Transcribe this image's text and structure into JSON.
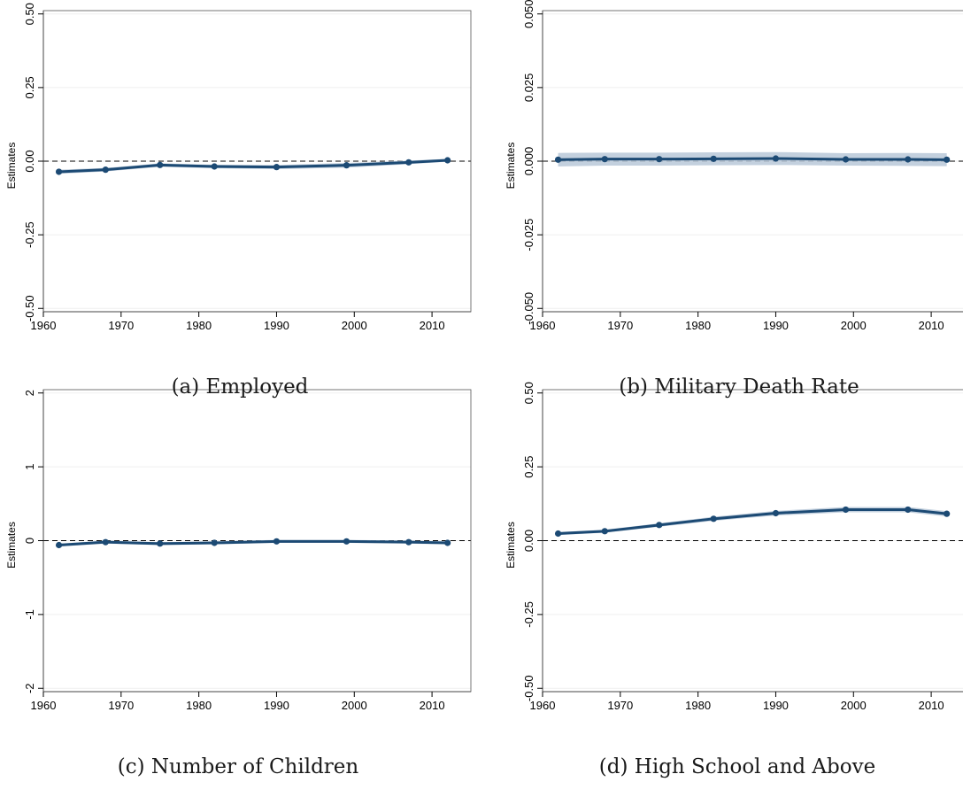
{
  "chart_data": [
    {
      "type": "line",
      "caption": "(a) Employed",
      "ylabel": "Estimates",
      "xlabel": "",
      "xlim": [
        1960,
        2015
      ],
      "ylim": [
        -0.5,
        0.5
      ],
      "xticks": [
        1960,
        1970,
        1980,
        1990,
        2000,
        2010
      ],
      "xtick_labels": [
        "1960",
        "1970",
        "1980",
        "1990",
        "2000",
        "2010"
      ],
      "yticks": [
        -0.5,
        -0.25,
        0,
        0.25,
        0.5
      ],
      "ytick_labels": [
        "-0.50",
        "-0.25",
        "0.00",
        "0.25",
        "0.50"
      ],
      "reference_line": 0,
      "grid": true,
      "series": [
        {
          "x": [
            1962,
            1968,
            1975,
            1982,
            1990,
            1999,
            2007,
            2012
          ],
          "y": [
            -0.036,
            -0.029,
            -0.013,
            -0.018,
            -0.02,
            -0.014,
            -0.004,
            0.003
          ],
          "ci_lower": [
            -0.043,
            -0.035,
            -0.019,
            -0.024,
            -0.027,
            -0.022,
            -0.01,
            -0.002
          ],
          "ci_upper": [
            -0.029,
            -0.023,
            -0.007,
            -0.012,
            -0.013,
            -0.006,
            0.002,
            0.008
          ]
        }
      ]
    },
    {
      "type": "line",
      "caption": "(b) Military Death Rate",
      "ylabel": "Estimates",
      "xlabel": "",
      "xlim": [
        1960,
        2015
      ],
      "ylim": [
        -0.05,
        0.05
      ],
      "xticks": [
        1960,
        1970,
        1980,
        1990,
        2000,
        2010
      ],
      "xtick_labels": [
        "1960",
        "1970",
        "1980",
        "1990",
        "2000",
        "2010"
      ],
      "yticks": [
        -0.05,
        -0.025,
        0,
        0.025,
        0.05
      ],
      "ytick_labels": [
        "-0.050",
        "-0.025",
        "0.000",
        "0.025",
        "0.050"
      ],
      "reference_line": 0,
      "grid": true,
      "series": [
        {
          "x": [
            1962,
            1968,
            1975,
            1982,
            1990,
            1999,
            2007,
            2012
          ],
          "y": [
            0.0005,
            0.0007,
            0.0007,
            0.0008,
            0.0009,
            0.0006,
            0.0006,
            0.0005
          ],
          "ci_lower": [
            -0.0018,
            -0.0015,
            -0.0015,
            -0.0014,
            -0.0013,
            -0.0015,
            -0.0016,
            -0.0017
          ],
          "ci_upper": [
            0.0028,
            0.0029,
            0.0029,
            0.003,
            0.0031,
            0.0027,
            0.0028,
            0.0027
          ]
        }
      ]
    },
    {
      "type": "line",
      "caption": "(c) Number of Children",
      "ylabel": "Estimates",
      "xlabel": "",
      "xlim": [
        1960,
        2015
      ],
      "ylim": [
        -2,
        2
      ],
      "xticks": [
        1960,
        1970,
        1980,
        1990,
        2000,
        2010
      ],
      "xtick_labels": [
        "1960",
        "1970",
        "1980",
        "1990",
        "2000",
        "2010"
      ],
      "yticks": [
        -2,
        -1,
        0,
        1,
        2
      ],
      "ytick_labels": [
        "-2",
        "-1",
        "0",
        "1",
        "2"
      ],
      "reference_line": 0,
      "grid": true,
      "series": [
        {
          "x": [
            1962,
            1968,
            1975,
            1982,
            1990,
            1999,
            2007,
            2012
          ],
          "y": [
            -0.06,
            -0.02,
            -0.04,
            -0.03,
            -0.01,
            -0.01,
            -0.02,
            -0.03
          ],
          "ci_lower": [
            -0.08,
            -0.04,
            -0.06,
            -0.05,
            -0.03,
            -0.03,
            -0.04,
            -0.05
          ],
          "ci_upper": [
            -0.04,
            0.0,
            -0.02,
            -0.01,
            0.01,
            0.01,
            0.0,
            -0.01
          ]
        }
      ]
    },
    {
      "type": "line",
      "caption": "(d) High School and Above",
      "ylabel": "Estimates",
      "xlabel": "",
      "xlim": [
        1960,
        2015
      ],
      "ylim": [
        -0.5,
        0.5
      ],
      "xticks": [
        1960,
        1970,
        1980,
        1990,
        2000,
        2010
      ],
      "xtick_labels": [
        "1960",
        "1970",
        "1980",
        "1990",
        "2000",
        "2010"
      ],
      "yticks": [
        -0.5,
        -0.25,
        0,
        0.25,
        0.5
      ],
      "ytick_labels": [
        "-0.50",
        "-0.25",
        "0.00",
        "0.25",
        "0.50"
      ],
      "reference_line": 0,
      "grid": true,
      "series": [
        {
          "x": [
            1962,
            1968,
            1975,
            1982,
            1990,
            1999,
            2007,
            2012
          ],
          "y": [
            0.024,
            0.032,
            0.053,
            0.074,
            0.093,
            0.105,
            0.105,
            0.091
          ],
          "ci_lower": [
            0.019,
            0.027,
            0.047,
            0.067,
            0.085,
            0.096,
            0.096,
            0.082
          ],
          "ci_upper": [
            0.029,
            0.037,
            0.059,
            0.081,
            0.101,
            0.114,
            0.114,
            0.1
          ]
        }
      ]
    }
  ],
  "style": {
    "line_color": "#1c4a74",
    "ci_color": "#b8c8d8",
    "grid_color": "#efefef",
    "axis_color": "#000000"
  }
}
